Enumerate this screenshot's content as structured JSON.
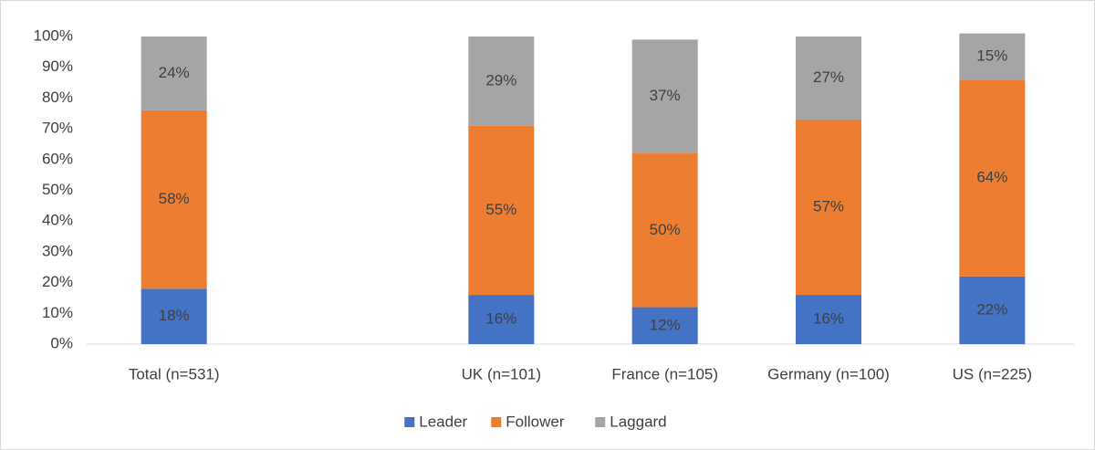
{
  "chart_data": {
    "type": "stacked_bar",
    "categories": [
      "Total (n=531)",
      null,
      "UK (n=101)",
      "France (n=105)",
      "Germany (n=100)",
      "US (n=225)"
    ],
    "series": [
      {
        "name": "Leader",
        "color": "#4472c4",
        "values": [
          18,
          null,
          16,
          12,
          16,
          22
        ],
        "value_labels": [
          "18%",
          null,
          "16%",
          "12%",
          "16%",
          "22%"
        ]
      },
      {
        "name": "Follower",
        "color": "#ed7d31",
        "values": [
          58,
          null,
          55,
          50,
          57,
          64
        ],
        "value_labels": [
          "58%",
          null,
          "55%",
          "50%",
          "57%",
          "64%"
        ]
      },
      {
        "name": "Laggard",
        "color": "#a5a5a5",
        "values": [
          24,
          null,
          29,
          37,
          27,
          15
        ],
        "value_labels": [
          "24%",
          null,
          "29%",
          "37%",
          "27%",
          "15%"
        ]
      }
    ],
    "ylim": [
      0,
      100
    ],
    "yticks": [
      {
        "value": 0,
        "label": "0%"
      },
      {
        "value": 10,
        "label": "10%"
      },
      {
        "value": 20,
        "label": "20%"
      },
      {
        "value": 30,
        "label": "30%"
      },
      {
        "value": 40,
        "label": "40%"
      },
      {
        "value": 50,
        "label": "50%"
      },
      {
        "value": 60,
        "label": "60%"
      },
      {
        "value": 70,
        "label": "70%"
      },
      {
        "value": 80,
        "label": "80%"
      },
      {
        "value": 90,
        "label": "90%"
      },
      {
        "value": 100,
        "label": "100%"
      }
    ],
    "grid": false,
    "legend": "bottom"
  }
}
